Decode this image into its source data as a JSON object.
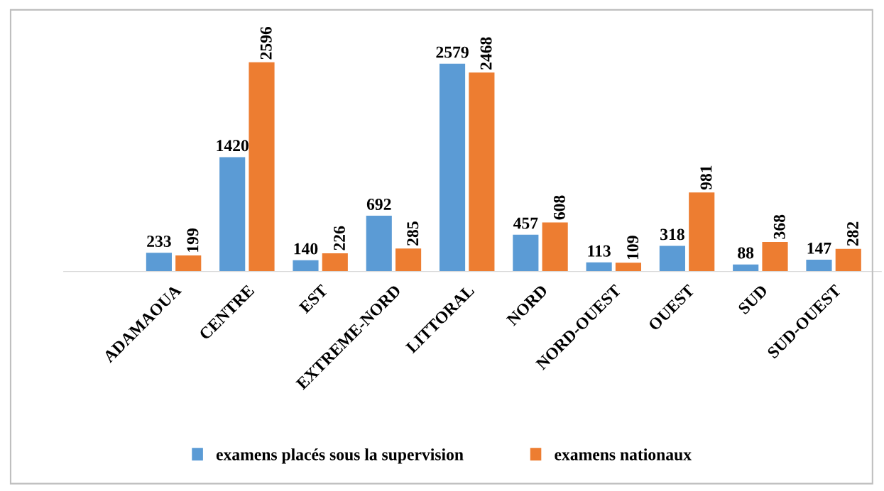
{
  "chart_data": {
    "type": "bar",
    "categories": [
      "ADAMAOUA",
      "CENTRE",
      "EST",
      "EXTREME-NORD",
      "LITTORAL",
      "NORD",
      "NORD-OUEST",
      "OUEST",
      "SUD",
      "SUD-OUEST"
    ],
    "series": [
      {
        "name": "examens placés sous la supervision",
        "color": "#5b9bd5",
        "values": [
          233,
          1420,
          140,
          692,
          2579,
          457,
          113,
          318,
          88,
          147
        ]
      },
      {
        "name": "examens nationaux",
        "color": "#ed7d31",
        "values": [
          199,
          2596,
          226,
          285,
          2468,
          608,
          109,
          981,
          368,
          282
        ]
      }
    ],
    "data_labels": true,
    "legend": "bottom",
    "grid": false
  }
}
